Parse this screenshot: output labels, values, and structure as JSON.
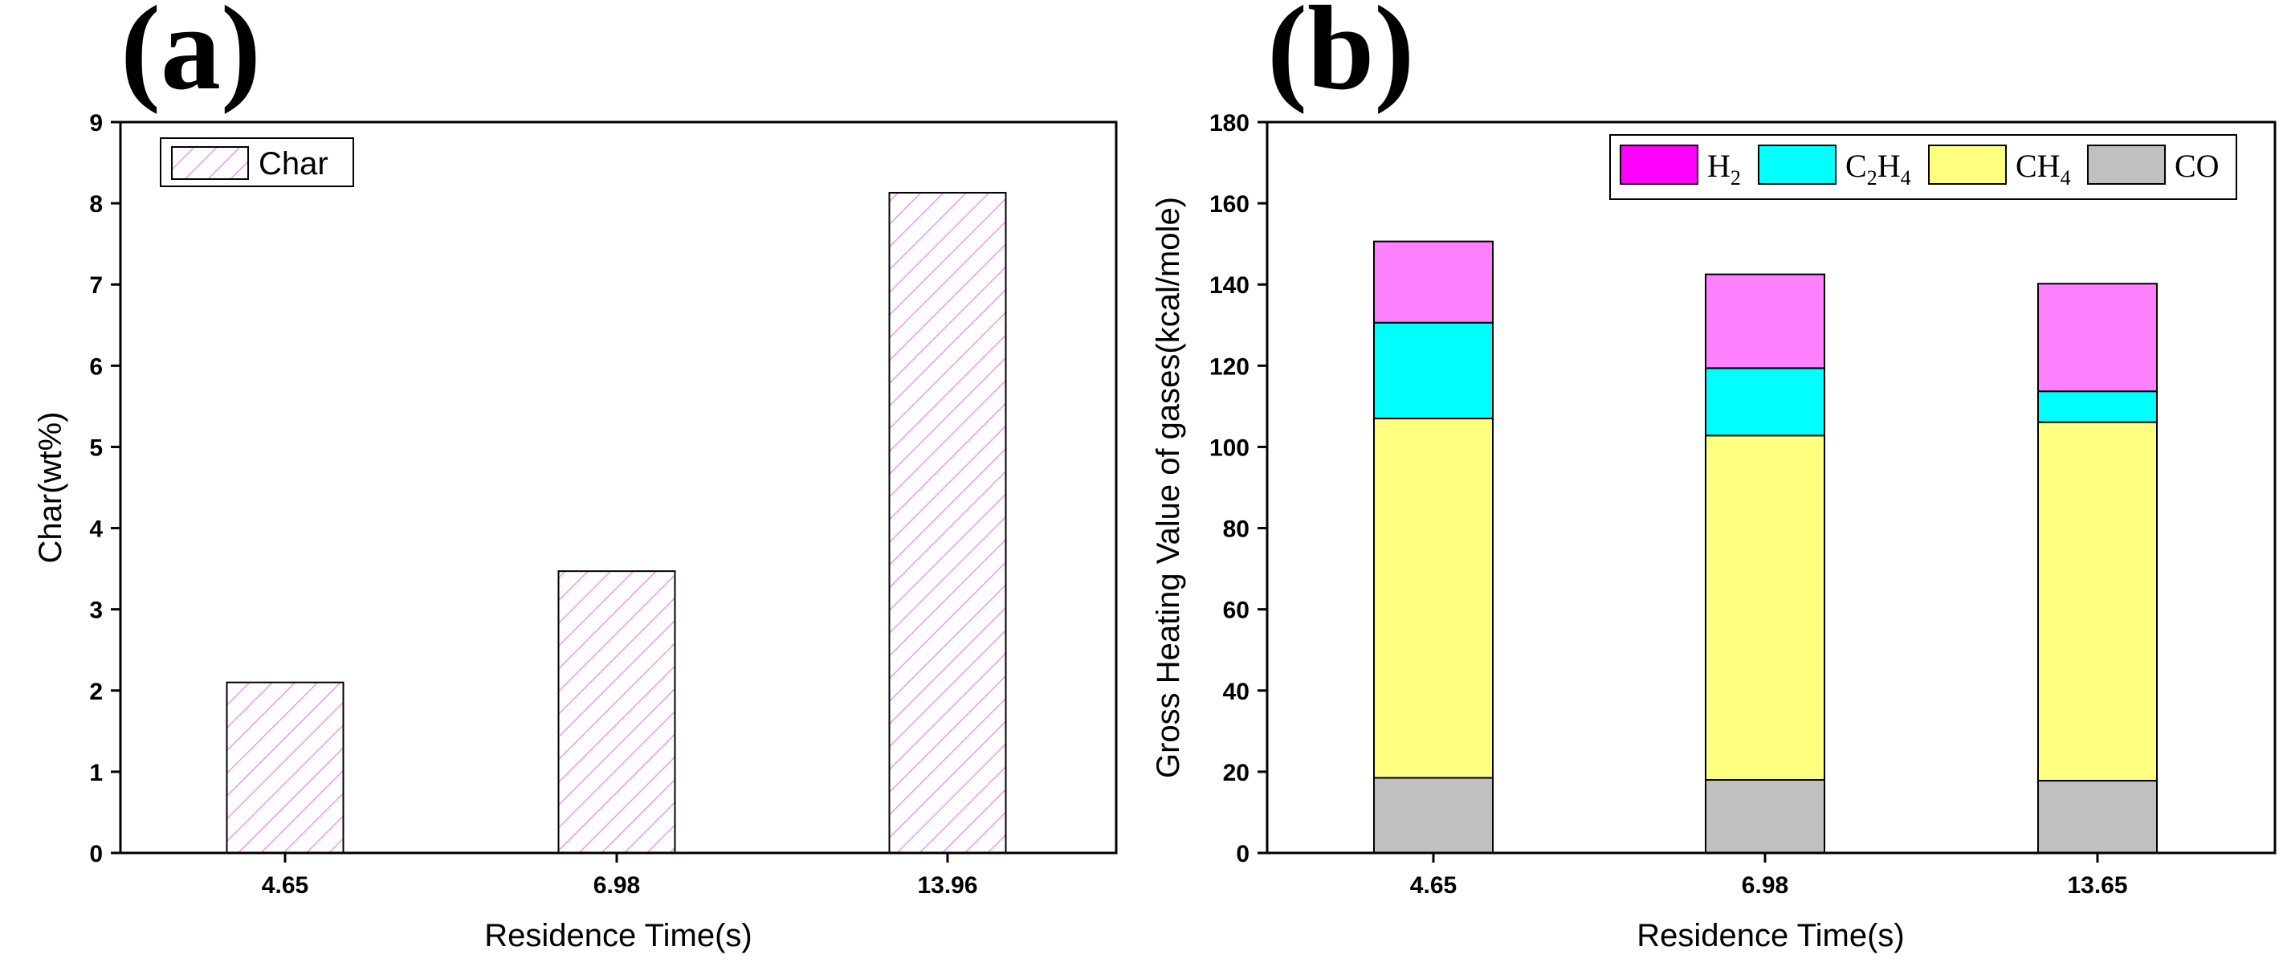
{
  "chart_data": [
    {
      "type": "bar",
      "panel_label": "(a)",
      "title": "",
      "xlabel": "Residence Time(s)",
      "ylabel": "Char(wt%)",
      "categories": [
        "4.65",
        "6.98",
        "13.96"
      ],
      "series": [
        {
          "name": "Char",
          "values": [
            2.1,
            3.47,
            8.13
          ],
          "color": "#ee82ee",
          "pattern": "hatch"
        }
      ],
      "ylim": [
        0,
        9
      ],
      "yticks": [
        "0",
        "1",
        "2",
        "3",
        "4",
        "5",
        "6",
        "7",
        "8",
        "9"
      ],
      "legend": "top-left",
      "grid": false
    },
    {
      "type": "bar",
      "stacked": true,
      "panel_label": "(b)",
      "title": "",
      "xlabel": "Residence Time(s)",
      "ylabel": "Gross Heating Value of gases(kcal/mole)",
      "categories": [
        "4.65",
        "6.98",
        "13.65"
      ],
      "series": [
        {
          "name": "CO",
          "label_base": "CO",
          "label_sub": "",
          "values": [
            18.5,
            18.0,
            17.8
          ],
          "color": "#c0c0c0"
        },
        {
          "name": "CH4",
          "label_base": "CH",
          "label_sub": "4",
          "values": [
            88.5,
            84.8,
            88.3
          ],
          "color": "#ffff80"
        },
        {
          "name": "C2H4",
          "label_parts": [
            "C",
            "2",
            "H",
            "4"
          ],
          "values": [
            23.6,
            16.6,
            7.6
          ],
          "color": "#00ffff"
        },
        {
          "name": "H2",
          "label_base": "H",
          "label_sub": "2",
          "values": [
            20.0,
            23.1,
            26.5
          ],
          "color": "#ff80ff"
        }
      ],
      "legend_order": [
        "H2",
        "C2H4",
        "CH4",
        "CO"
      ],
      "legend_swatch_colors": {
        "H2": "#ff00ff",
        "C2H4": "#00ffff",
        "CH4": "#ffff80",
        "CO": "#c0c0c0"
      },
      "ylim": [
        0,
        180
      ],
      "yticks": [
        "0",
        "20",
        "40",
        "60",
        "80",
        "100",
        "120",
        "140",
        "160",
        "180"
      ],
      "legend": "top-right",
      "grid": false
    }
  ]
}
